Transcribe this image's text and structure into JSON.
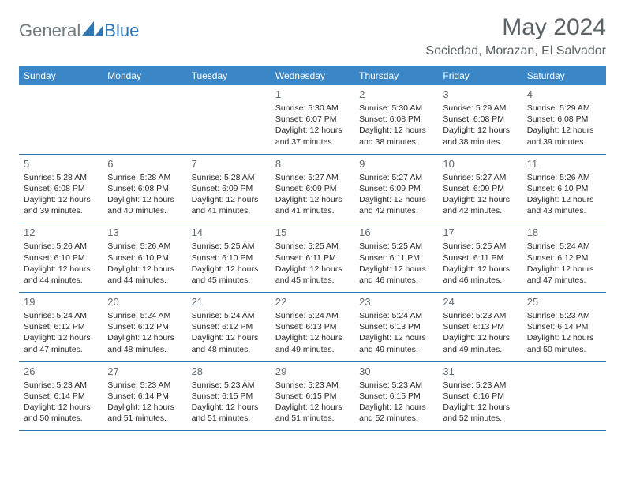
{
  "brand": {
    "general": "General",
    "blue": "Blue"
  },
  "title": "May 2024",
  "location": "Sociedad, Morazan, El Salvador",
  "colors": {
    "header_bg": "#3b86c6",
    "header_text": "#ffffff",
    "rule": "#2f78b8",
    "body_text": "#2b2b2b",
    "muted_text": "#5f6a70",
    "brand_gray": "#6f7a7f",
    "brand_blue": "#2f78b8",
    "background": "#ffffff"
  },
  "day_names": [
    "Sunday",
    "Monday",
    "Tuesday",
    "Wednesday",
    "Thursday",
    "Friday",
    "Saturday"
  ],
  "weeks": [
    [
      {
        "day": "",
        "sunrise": "",
        "sunset": "",
        "daylight1": "",
        "daylight2": ""
      },
      {
        "day": "",
        "sunrise": "",
        "sunset": "",
        "daylight1": "",
        "daylight2": ""
      },
      {
        "day": "",
        "sunrise": "",
        "sunset": "",
        "daylight1": "",
        "daylight2": ""
      },
      {
        "day": "1",
        "sunrise": "Sunrise: 5:30 AM",
        "sunset": "Sunset: 6:07 PM",
        "daylight1": "Daylight: 12 hours",
        "daylight2": "and 37 minutes."
      },
      {
        "day": "2",
        "sunrise": "Sunrise: 5:30 AM",
        "sunset": "Sunset: 6:08 PM",
        "daylight1": "Daylight: 12 hours",
        "daylight2": "and 38 minutes."
      },
      {
        "day": "3",
        "sunrise": "Sunrise: 5:29 AM",
        "sunset": "Sunset: 6:08 PM",
        "daylight1": "Daylight: 12 hours",
        "daylight2": "and 38 minutes."
      },
      {
        "day": "4",
        "sunrise": "Sunrise: 5:29 AM",
        "sunset": "Sunset: 6:08 PM",
        "daylight1": "Daylight: 12 hours",
        "daylight2": "and 39 minutes."
      }
    ],
    [
      {
        "day": "5",
        "sunrise": "Sunrise: 5:28 AM",
        "sunset": "Sunset: 6:08 PM",
        "daylight1": "Daylight: 12 hours",
        "daylight2": "and 39 minutes."
      },
      {
        "day": "6",
        "sunrise": "Sunrise: 5:28 AM",
        "sunset": "Sunset: 6:08 PM",
        "daylight1": "Daylight: 12 hours",
        "daylight2": "and 40 minutes."
      },
      {
        "day": "7",
        "sunrise": "Sunrise: 5:28 AM",
        "sunset": "Sunset: 6:09 PM",
        "daylight1": "Daylight: 12 hours",
        "daylight2": "and 41 minutes."
      },
      {
        "day": "8",
        "sunrise": "Sunrise: 5:27 AM",
        "sunset": "Sunset: 6:09 PM",
        "daylight1": "Daylight: 12 hours",
        "daylight2": "and 41 minutes."
      },
      {
        "day": "9",
        "sunrise": "Sunrise: 5:27 AM",
        "sunset": "Sunset: 6:09 PM",
        "daylight1": "Daylight: 12 hours",
        "daylight2": "and 42 minutes."
      },
      {
        "day": "10",
        "sunrise": "Sunrise: 5:27 AM",
        "sunset": "Sunset: 6:09 PM",
        "daylight1": "Daylight: 12 hours",
        "daylight2": "and 42 minutes."
      },
      {
        "day": "11",
        "sunrise": "Sunrise: 5:26 AM",
        "sunset": "Sunset: 6:10 PM",
        "daylight1": "Daylight: 12 hours",
        "daylight2": "and 43 minutes."
      }
    ],
    [
      {
        "day": "12",
        "sunrise": "Sunrise: 5:26 AM",
        "sunset": "Sunset: 6:10 PM",
        "daylight1": "Daylight: 12 hours",
        "daylight2": "and 44 minutes."
      },
      {
        "day": "13",
        "sunrise": "Sunrise: 5:26 AM",
        "sunset": "Sunset: 6:10 PM",
        "daylight1": "Daylight: 12 hours",
        "daylight2": "and 44 minutes."
      },
      {
        "day": "14",
        "sunrise": "Sunrise: 5:25 AM",
        "sunset": "Sunset: 6:10 PM",
        "daylight1": "Daylight: 12 hours",
        "daylight2": "and 45 minutes."
      },
      {
        "day": "15",
        "sunrise": "Sunrise: 5:25 AM",
        "sunset": "Sunset: 6:11 PM",
        "daylight1": "Daylight: 12 hours",
        "daylight2": "and 45 minutes."
      },
      {
        "day": "16",
        "sunrise": "Sunrise: 5:25 AM",
        "sunset": "Sunset: 6:11 PM",
        "daylight1": "Daylight: 12 hours",
        "daylight2": "and 46 minutes."
      },
      {
        "day": "17",
        "sunrise": "Sunrise: 5:25 AM",
        "sunset": "Sunset: 6:11 PM",
        "daylight1": "Daylight: 12 hours",
        "daylight2": "and 46 minutes."
      },
      {
        "day": "18",
        "sunrise": "Sunrise: 5:24 AM",
        "sunset": "Sunset: 6:12 PM",
        "daylight1": "Daylight: 12 hours",
        "daylight2": "and 47 minutes."
      }
    ],
    [
      {
        "day": "19",
        "sunrise": "Sunrise: 5:24 AM",
        "sunset": "Sunset: 6:12 PM",
        "daylight1": "Daylight: 12 hours",
        "daylight2": "and 47 minutes."
      },
      {
        "day": "20",
        "sunrise": "Sunrise: 5:24 AM",
        "sunset": "Sunset: 6:12 PM",
        "daylight1": "Daylight: 12 hours",
        "daylight2": "and 48 minutes."
      },
      {
        "day": "21",
        "sunrise": "Sunrise: 5:24 AM",
        "sunset": "Sunset: 6:12 PM",
        "daylight1": "Daylight: 12 hours",
        "daylight2": "and 48 minutes."
      },
      {
        "day": "22",
        "sunrise": "Sunrise: 5:24 AM",
        "sunset": "Sunset: 6:13 PM",
        "daylight1": "Daylight: 12 hours",
        "daylight2": "and 49 minutes."
      },
      {
        "day": "23",
        "sunrise": "Sunrise: 5:24 AM",
        "sunset": "Sunset: 6:13 PM",
        "daylight1": "Daylight: 12 hours",
        "daylight2": "and 49 minutes."
      },
      {
        "day": "24",
        "sunrise": "Sunrise: 5:23 AM",
        "sunset": "Sunset: 6:13 PM",
        "daylight1": "Daylight: 12 hours",
        "daylight2": "and 49 minutes."
      },
      {
        "day": "25",
        "sunrise": "Sunrise: 5:23 AM",
        "sunset": "Sunset: 6:14 PM",
        "daylight1": "Daylight: 12 hours",
        "daylight2": "and 50 minutes."
      }
    ],
    [
      {
        "day": "26",
        "sunrise": "Sunrise: 5:23 AM",
        "sunset": "Sunset: 6:14 PM",
        "daylight1": "Daylight: 12 hours",
        "daylight2": "and 50 minutes."
      },
      {
        "day": "27",
        "sunrise": "Sunrise: 5:23 AM",
        "sunset": "Sunset: 6:14 PM",
        "daylight1": "Daylight: 12 hours",
        "daylight2": "and 51 minutes."
      },
      {
        "day": "28",
        "sunrise": "Sunrise: 5:23 AM",
        "sunset": "Sunset: 6:15 PM",
        "daylight1": "Daylight: 12 hours",
        "daylight2": "and 51 minutes."
      },
      {
        "day": "29",
        "sunrise": "Sunrise: 5:23 AM",
        "sunset": "Sunset: 6:15 PM",
        "daylight1": "Daylight: 12 hours",
        "daylight2": "and 51 minutes."
      },
      {
        "day": "30",
        "sunrise": "Sunrise: 5:23 AM",
        "sunset": "Sunset: 6:15 PM",
        "daylight1": "Daylight: 12 hours",
        "daylight2": "and 52 minutes."
      },
      {
        "day": "31",
        "sunrise": "Sunrise: 5:23 AM",
        "sunset": "Sunset: 6:16 PM",
        "daylight1": "Daylight: 12 hours",
        "daylight2": "and 52 minutes."
      },
      {
        "day": "",
        "sunrise": "",
        "sunset": "",
        "daylight1": "",
        "daylight2": ""
      }
    ]
  ]
}
